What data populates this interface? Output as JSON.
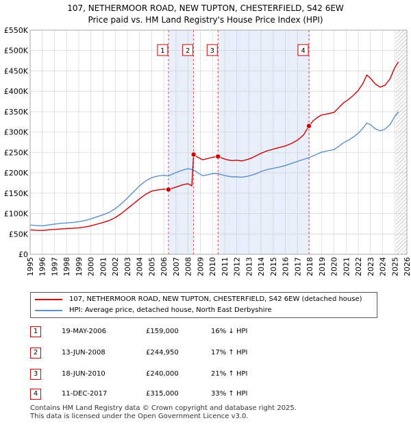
{
  "chart_data": {
    "type": "line",
    "title": "107, NETHERMOOR ROAD, NEW TUPTON, CHESTERFIELD, S42 6EW",
    "subtitle": "Price paid vs. HM Land Registry's House Price Index (HPI)",
    "xlim": [
      1995,
      2026
    ],
    "ylim": [
      0,
      550000
    ],
    "y_ticks": [
      {
        "value": 0,
        "label": "£0"
      },
      {
        "value": 50000,
        "label": "£50K"
      },
      {
        "value": 100000,
        "label": "£100K"
      },
      {
        "value": 150000,
        "label": "£150K"
      },
      {
        "value": 200000,
        "label": "£200K"
      },
      {
        "value": 250000,
        "label": "£250K"
      },
      {
        "value": 300000,
        "label": "£300K"
      },
      {
        "value": 350000,
        "label": "£350K"
      },
      {
        "value": 400000,
        "label": "£400K"
      },
      {
        "value": 450000,
        "label": "£450K"
      },
      {
        "value": 500000,
        "label": "£500K"
      },
      {
        "value": 550000,
        "label": "£550K"
      }
    ],
    "x_ticks": [
      "1995",
      "1996",
      "1997",
      "1998",
      "1999",
      "2000",
      "2001",
      "2002",
      "2003",
      "2004",
      "2005",
      "2006",
      "2007",
      "2008",
      "2009",
      "2010",
      "2011",
      "2012",
      "2013",
      "2014",
      "2015",
      "2016",
      "2017",
      "2018",
      "2019",
      "2020",
      "2021",
      "2022",
      "2023",
      "2024",
      "2025",
      "2026"
    ],
    "shaded_regions": [
      [
        2006.38,
        2008.45
      ],
      [
        2010.46,
        2017.94
      ]
    ],
    "future_hatch_from": 2025.1,
    "series": [
      {
        "name": "107, NETHERMOOR ROAD, NEW TUPTON, CHESTERFIELD, S42 6EW (detached house)",
        "color": "#cc0000",
        "points": [
          [
            1995.0,
            60000
          ],
          [
            1995.5,
            59000
          ],
          [
            1996.0,
            58500
          ],
          [
            1996.5,
            60000
          ],
          [
            1997.0,
            61000
          ],
          [
            1997.5,
            62000
          ],
          [
            1998.0,
            63000
          ],
          [
            1998.5,
            64000
          ],
          [
            1999.0,
            65000
          ],
          [
            1999.5,
            67000
          ],
          [
            2000.0,
            70000
          ],
          [
            2000.5,
            74000
          ],
          [
            2001.0,
            78000
          ],
          [
            2001.5,
            83000
          ],
          [
            2002.0,
            90000
          ],
          [
            2002.5,
            100000
          ],
          [
            2003.0,
            112000
          ],
          [
            2003.5,
            124000
          ],
          [
            2004.0,
            136000
          ],
          [
            2004.5,
            147000
          ],
          [
            2005.0,
            155000
          ],
          [
            2005.5,
            158000
          ],
          [
            2006.0,
            160000
          ],
          [
            2006.38,
            159000
          ],
          [
            2006.8,
            163000
          ],
          [
            2007.2,
            167000
          ],
          [
            2007.6,
            171000
          ],
          [
            2008.0,
            173000
          ],
          [
            2008.3,
            168000
          ],
          [
            2008.45,
            244950
          ],
          [
            2008.8,
            238000
          ],
          [
            2009.2,
            232000
          ],
          [
            2009.6,
            235000
          ],
          [
            2010.0,
            238000
          ],
          [
            2010.46,
            240000
          ],
          [
            2010.8,
            236000
          ],
          [
            2011.2,
            232000
          ],
          [
            2011.6,
            230000
          ],
          [
            2012.0,
            231000
          ],
          [
            2012.4,
            229000
          ],
          [
            2012.8,
            232000
          ],
          [
            2013.2,
            236000
          ],
          [
            2013.6,
            242000
          ],
          [
            2014.0,
            248000
          ],
          [
            2014.5,
            254000
          ],
          [
            2015.0,
            258000
          ],
          [
            2015.5,
            262000
          ],
          [
            2016.0,
            266000
          ],
          [
            2016.5,
            272000
          ],
          [
            2017.0,
            280000
          ],
          [
            2017.5,
            293000
          ],
          [
            2017.94,
            315000
          ],
          [
            2018.3,
            328000
          ],
          [
            2018.7,
            337000
          ],
          [
            2019.0,
            342000
          ],
          [
            2019.5,
            345000
          ],
          [
            2020.0,
            348000
          ],
          [
            2020.4,
            360000
          ],
          [
            2020.8,
            372000
          ],
          [
            2021.2,
            380000
          ],
          [
            2021.6,
            390000
          ],
          [
            2022.0,
            402000
          ],
          [
            2022.4,
            420000
          ],
          [
            2022.7,
            440000
          ],
          [
            2023.0,
            432000
          ],
          [
            2023.4,
            418000
          ],
          [
            2023.8,
            410000
          ],
          [
            2024.2,
            415000
          ],
          [
            2024.6,
            430000
          ],
          [
            2025.0,
            458000
          ],
          [
            2025.3,
            472000
          ]
        ]
      },
      {
        "name": "HPI: Average price, detached house, North East Derbyshire",
        "color": "#5b8fcc",
        "points": [
          [
            1995.0,
            72000
          ],
          [
            1995.5,
            70500
          ],
          [
            1996.0,
            70000
          ],
          [
            1996.5,
            72000
          ],
          [
            1997.0,
            74000
          ],
          [
            1997.5,
            76000
          ],
          [
            1998.0,
            77000
          ],
          [
            1998.5,
            78000
          ],
          [
            1999.0,
            80000
          ],
          [
            1999.5,
            83000
          ],
          [
            2000.0,
            87000
          ],
          [
            2000.5,
            92000
          ],
          [
            2001.0,
            97000
          ],
          [
            2001.5,
            103000
          ],
          [
            2002.0,
            112000
          ],
          [
            2002.5,
            124000
          ],
          [
            2003.0,
            138000
          ],
          [
            2003.5,
            153000
          ],
          [
            2004.0,
            168000
          ],
          [
            2004.5,
            180000
          ],
          [
            2005.0,
            188000
          ],
          [
            2005.5,
            192000
          ],
          [
            2006.0,
            194000
          ],
          [
            2006.38,
            192000
          ],
          [
            2006.8,
            198000
          ],
          [
            2007.2,
            203000
          ],
          [
            2007.6,
            207000
          ],
          [
            2008.0,
            210000
          ],
          [
            2008.45,
            207000
          ],
          [
            2008.8,
            200000
          ],
          [
            2009.2,
            193000
          ],
          [
            2009.6,
            195000
          ],
          [
            2010.0,
            198000
          ],
          [
            2010.46,
            198000
          ],
          [
            2010.8,
            195000
          ],
          [
            2011.2,
            192000
          ],
          [
            2011.6,
            190000
          ],
          [
            2012.0,
            190000
          ],
          [
            2012.4,
            189000
          ],
          [
            2012.8,
            191000
          ],
          [
            2013.2,
            194000
          ],
          [
            2013.6,
            198000
          ],
          [
            2014.0,
            203000
          ],
          [
            2014.5,
            208000
          ],
          [
            2015.0,
            211000
          ],
          [
            2015.5,
            214000
          ],
          [
            2016.0,
            218000
          ],
          [
            2016.5,
            223000
          ],
          [
            2017.0,
            228000
          ],
          [
            2017.5,
            233000
          ],
          [
            2017.94,
            237000
          ],
          [
            2018.3,
            242000
          ],
          [
            2018.7,
            247000
          ],
          [
            2019.0,
            251000
          ],
          [
            2019.5,
            254000
          ],
          [
            2020.0,
            257000
          ],
          [
            2020.4,
            265000
          ],
          [
            2020.8,
            274000
          ],
          [
            2021.2,
            280000
          ],
          [
            2021.6,
            288000
          ],
          [
            2022.0,
            297000
          ],
          [
            2022.4,
            310000
          ],
          [
            2022.7,
            322000
          ],
          [
            2023.0,
            318000
          ],
          [
            2023.4,
            308000
          ],
          [
            2023.8,
            303000
          ],
          [
            2024.2,
            307000
          ],
          [
            2024.6,
            318000
          ],
          [
            2025.0,
            338000
          ],
          [
            2025.3,
            350000
          ]
        ]
      }
    ],
    "sales": [
      {
        "label": "1",
        "x": 2006.38,
        "price": 159000
      },
      {
        "label": "2",
        "x": 2008.45,
        "price": 244950
      },
      {
        "label": "3",
        "x": 2010.46,
        "price": 240000
      },
      {
        "label": "4",
        "x": 2017.94,
        "price": 315000
      }
    ]
  },
  "legend": {
    "property": "107, NETHERMOOR ROAD, NEW TUPTON, CHESTERFIELD, S42 6EW (detached house)",
    "hpi": "HPI: Average price, detached house, North East Derbyshire"
  },
  "transactions": [
    {
      "num": "1",
      "date": "19-MAY-2006",
      "price": "£159,000",
      "hpi": "16% ↓ HPI"
    },
    {
      "num": "2",
      "date": "13-JUN-2008",
      "price": "£244,950",
      "hpi": "17% ↑ HPI"
    },
    {
      "num": "3",
      "date": "18-JUN-2010",
      "price": "£240,000",
      "hpi": "21% ↑ HPI"
    },
    {
      "num": "4",
      "date": "11-DEC-2017",
      "price": "£315,000",
      "hpi": "33% ↑ HPI"
    }
  ],
  "footer": {
    "line1": "Contains HM Land Registry data © Crown copyright and database right 2025.",
    "line2": "This data is licensed under the Open Government Licence v3.0."
  },
  "colors": {
    "property": "#cc0000",
    "hpi": "#5b8fcc",
    "shade": "#e8eefa",
    "grid": "#cccccc"
  }
}
